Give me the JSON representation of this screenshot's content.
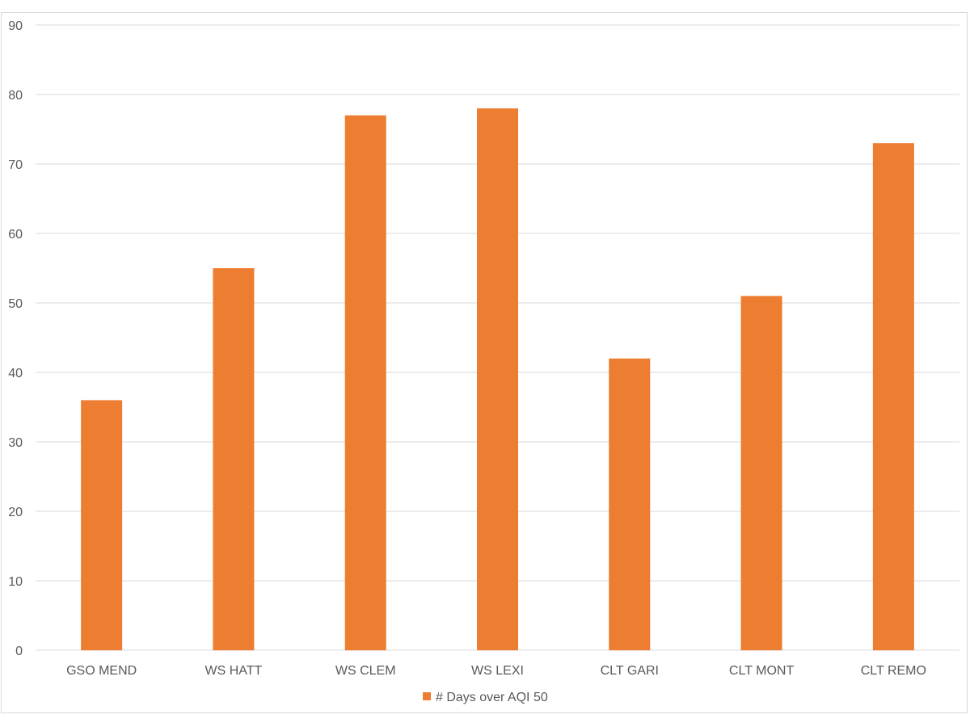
{
  "chart_data": {
    "type": "bar",
    "categories": [
      "GSO MEND",
      "WS HATT",
      "WS CLEM",
      "WS LEXI",
      "CLT GARI",
      "CLT MONT",
      "CLT REMO"
    ],
    "series": [
      {
        "name": "# Days over AQI 50",
        "values": [
          36,
          55,
          77,
          78,
          42,
          51,
          73
        ],
        "color": "#ED7D31"
      }
    ],
    "ylim": [
      0,
      90
    ],
    "yticks": [
      0,
      10,
      20,
      30,
      40,
      50,
      60,
      70,
      80,
      90
    ],
    "grid": true,
    "legend": "bottom-center"
  }
}
